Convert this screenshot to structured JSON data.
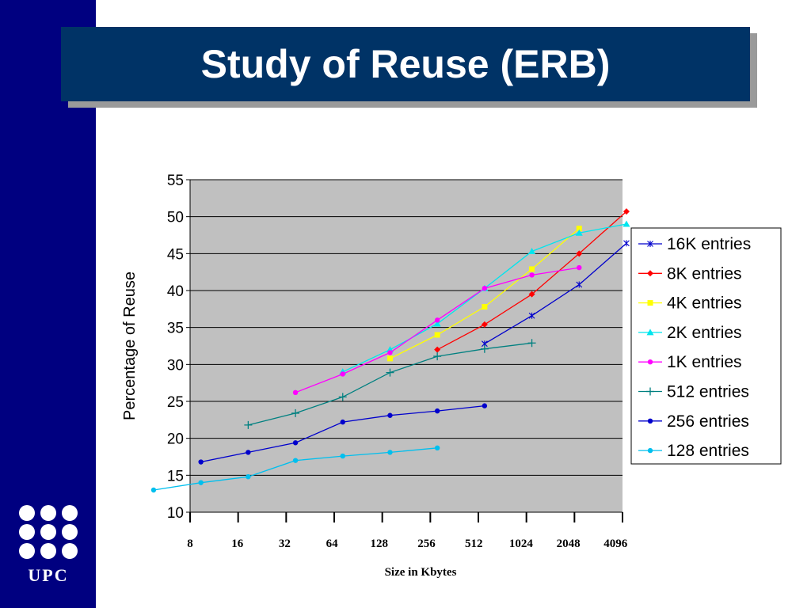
{
  "slide": {
    "title": "Study of Reuse (ERB)",
    "logo_text": "UPC",
    "colors": {
      "sidebar": "#000080",
      "title_box": "#003366",
      "plot_area": "#c0c0c0"
    }
  },
  "chart_data": {
    "type": "line",
    "title": "",
    "xlabel": "Size in Kbytes",
    "ylabel": "Percentage of Reuse",
    "x_scale": "log2",
    "x_ticks": [
      8,
      16,
      32,
      64,
      128,
      256,
      512,
      1024,
      2048,
      4096
    ],
    "x_tick_labels": [
      "8",
      "16",
      "32",
      "64",
      "128",
      "256",
      "512",
      "1024",
      "2048",
      "4096"
    ],
    "ylim": [
      10,
      55
    ],
    "y_ticks": [
      10,
      15,
      20,
      25,
      30,
      35,
      40,
      45,
      50,
      55
    ],
    "y_tick_labels": [
      "10",
      "15",
      "20",
      "25",
      "30",
      "35",
      "40",
      "45",
      "50",
      "55"
    ],
    "grid": "horizontal",
    "legend_position": "right",
    "series": [
      {
        "name": "16K entries",
        "color": "#0000cc",
        "marker": "asterisk",
        "x": [
          600,
          1200,
          2400,
          4800
        ],
        "y": [
          32.8,
          36.6,
          40.8,
          46.4
        ]
      },
      {
        "name": "8K entries",
        "color": "#ff0000",
        "marker": "diamond",
        "x": [
          300,
          600,
          1200,
          2400,
          4800
        ],
        "y": [
          32,
          35.4,
          39.5,
          45,
          50.7
        ]
      },
      {
        "name": "4K entries",
        "color": "#ffff00",
        "marker": "square",
        "x": [
          150,
          300,
          600,
          1200,
          2400
        ],
        "y": [
          30.8,
          34,
          37.8,
          42.9,
          48.4
        ]
      },
      {
        "name": "2K entries",
        "color": "#00e5ee",
        "marker": "triangle",
        "x": [
          75,
          150,
          300,
          600,
          1200,
          2400,
          4800
        ],
        "y": [
          29,
          32,
          35.5,
          40.3,
          45.3,
          47.8,
          49
        ]
      },
      {
        "name": "1K entries",
        "color": "#ff00ff",
        "marker": "circle",
        "x": [
          37.5,
          75,
          150,
          300,
          600,
          1200,
          2400
        ],
        "y": [
          26.2,
          28.7,
          31.6,
          36,
          40.3,
          42.1,
          43.1
        ]
      },
      {
        "name": "512 entries",
        "color": "#008080",
        "marker": "plus",
        "x": [
          18.75,
          37.5,
          75,
          150,
          300,
          600,
          1200
        ],
        "y": [
          21.8,
          23.4,
          25.6,
          28.9,
          31.1,
          32.1,
          32.9
        ]
      },
      {
        "name": "256 entries",
        "color": "#0000cc",
        "marker": "circle",
        "x": [
          9.375,
          18.75,
          37.5,
          75,
          150,
          300,
          600
        ],
        "y": [
          16.8,
          18.1,
          19.4,
          22.2,
          23.1,
          23.7,
          24.4
        ]
      },
      {
        "name": "128 entries",
        "color": "#00bfee",
        "marker": "circle",
        "x": [
          4.6875,
          9.375,
          18.75,
          37.5,
          75,
          150,
          300
        ],
        "y": [
          13,
          14,
          14.8,
          17,
          17.6,
          18.1,
          18.7
        ]
      }
    ]
  }
}
